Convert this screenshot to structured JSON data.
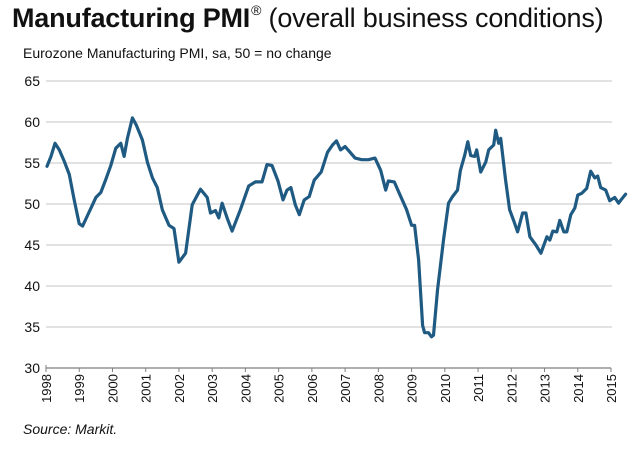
{
  "chart_data": {
    "type": "line",
    "title": "Manufacturing PMI",
    "title_mark": "®",
    "title_suffix": "(overall business conditions)",
    "subtitle": "Eurozone Manufacturing PMI, sa, 50 = no change",
    "source": "Source: Markit.",
    "xlabel": "",
    "ylabel": "",
    "xlim": [
      1998,
      2015
    ],
    "ylim": [
      30,
      65
    ],
    "yticks": [
      30,
      35,
      40,
      45,
      50,
      55,
      60,
      65
    ],
    "xticks": [
      "1998",
      "1999",
      "2000",
      "2001",
      "2002",
      "2003",
      "2004",
      "2005",
      "2006",
      "2007",
      "2008",
      "2009",
      "2010",
      "2011",
      "2012",
      "2013",
      "2014",
      "2015"
    ],
    "grid": "horizontal",
    "colors": {
      "line": "#1f5a82",
      "grid": "#d9d9d9",
      "axis": "#7f7f7f"
    },
    "series": [
      {
        "name": "Eurozone Manufacturing PMI",
        "points": [
          [
            1998.03,
            54.6
          ],
          [
            1998.15,
            55.8
          ],
          [
            1998.27,
            57.4
          ],
          [
            1998.4,
            56.6
          ],
          [
            1998.55,
            55.2
          ],
          [
            1998.7,
            53.6
          ],
          [
            1998.85,
            50.5
          ],
          [
            1999.0,
            47.6
          ],
          [
            1999.1,
            47.3
          ],
          [
            1999.25,
            48.6
          ],
          [
            1999.4,
            49.9
          ],
          [
            1999.5,
            50.8
          ],
          [
            1999.65,
            51.4
          ],
          [
            1999.8,
            53.0
          ],
          [
            1999.95,
            54.7
          ],
          [
            2000.1,
            56.8
          ],
          [
            2000.25,
            57.4
          ],
          [
            2000.35,
            55.8
          ],
          [
            2000.45,
            58.0
          ],
          [
            2000.6,
            60.5
          ],
          [
            2000.72,
            59.6
          ],
          [
            2000.9,
            57.8
          ],
          [
            2001.05,
            55.1
          ],
          [
            2001.2,
            53.2
          ],
          [
            2001.35,
            52.0
          ],
          [
            2001.5,
            49.3
          ],
          [
            2001.7,
            47.4
          ],
          [
            2001.85,
            47.0
          ],
          [
            2002.0,
            42.9
          ],
          [
            2002.2,
            44.0
          ],
          [
            2002.4,
            49.9
          ],
          [
            2002.65,
            51.8
          ],
          [
            2002.85,
            50.8
          ],
          [
            2002.95,
            48.9
          ],
          [
            2003.1,
            49.2
          ],
          [
            2003.2,
            48.3
          ],
          [
            2003.3,
            50.1
          ],
          [
            2003.45,
            48.3
          ],
          [
            2003.6,
            46.7
          ],
          [
            2003.85,
            49.3
          ],
          [
            2004.1,
            52.2
          ],
          [
            2004.3,
            52.7
          ],
          [
            2004.5,
            52.7
          ],
          [
            2004.65,
            54.8
          ],
          [
            2004.8,
            54.7
          ],
          [
            2004.98,
            52.8
          ],
          [
            2005.13,
            50.5
          ],
          [
            2005.25,
            51.7
          ],
          [
            2005.37,
            52.0
          ],
          [
            2005.5,
            49.9
          ],
          [
            2005.62,
            48.7
          ],
          [
            2005.77,
            50.5
          ],
          [
            2005.92,
            50.9
          ],
          [
            2006.07,
            52.9
          ],
          [
            2006.28,
            53.9
          ],
          [
            2006.47,
            56.3
          ],
          [
            2006.62,
            57.2
          ],
          [
            2006.74,
            57.7
          ],
          [
            2006.86,
            56.6
          ],
          [
            2007.0,
            57.0
          ],
          [
            2007.15,
            56.3
          ],
          [
            2007.3,
            55.6
          ],
          [
            2007.5,
            55.4
          ],
          [
            2007.7,
            55.4
          ],
          [
            2007.9,
            55.6
          ],
          [
            2008.07,
            54.1
          ],
          [
            2008.22,
            51.7
          ],
          [
            2008.3,
            52.8
          ],
          [
            2008.48,
            52.7
          ],
          [
            2008.63,
            51.3
          ],
          [
            2008.85,
            49.3
          ],
          [
            2009.0,
            47.4
          ],
          [
            2009.09,
            47.4
          ],
          [
            2009.21,
            43.2
          ],
          [
            2009.33,
            35.2
          ],
          [
            2009.39,
            34.3
          ],
          [
            2009.51,
            34.3
          ],
          [
            2009.6,
            33.8
          ],
          [
            2009.66,
            34.0
          ],
          [
            2009.78,
            39.5
          ],
          [
            2009.96,
            45.6
          ],
          [
            2010.11,
            50.1
          ],
          [
            2010.23,
            50.9
          ],
          [
            2010.38,
            51.7
          ],
          [
            2010.47,
            54.1
          ],
          [
            2010.6,
            56.0
          ],
          [
            2010.69,
            57.6
          ],
          [
            2010.78,
            55.9
          ],
          [
            2010.9,
            55.8
          ],
          [
            2010.96,
            56.6
          ],
          [
            2011.08,
            53.9
          ],
          [
            2011.23,
            55.1
          ],
          [
            2011.32,
            56.6
          ],
          [
            2011.47,
            57.2
          ],
          [
            2011.53,
            59.0
          ],
          [
            2011.62,
            57.4
          ],
          [
            2011.68,
            58.0
          ],
          [
            2011.83,
            52.9
          ],
          [
            2011.95,
            49.3
          ],
          [
            2012.07,
            48.0
          ],
          [
            2012.19,
            46.6
          ],
          [
            2012.34,
            48.9
          ],
          [
            2012.44,
            48.9
          ],
          [
            2012.56,
            46.0
          ],
          [
            2012.74,
            45.0
          ],
          [
            2012.89,
            44.0
          ],
          [
            2013.07,
            46.0
          ],
          [
            2013.16,
            45.6
          ],
          [
            2013.25,
            46.7
          ],
          [
            2013.37,
            46.6
          ],
          [
            2013.46,
            48.0
          ],
          [
            2013.58,
            46.6
          ],
          [
            2013.67,
            46.6
          ],
          [
            2013.79,
            48.7
          ],
          [
            2013.91,
            49.5
          ],
          [
            2014.0,
            51.1
          ],
          [
            2014.12,
            51.3
          ],
          [
            2014.27,
            51.9
          ],
          [
            2014.39,
            54.0
          ],
          [
            2014.51,
            53.2
          ],
          [
            2014.6,
            53.4
          ],
          [
            2014.69,
            52.0
          ],
          [
            2014.84,
            51.7
          ],
          [
            2014.96,
            50.4
          ],
          [
            2015.11,
            50.8
          ],
          [
            2015.23,
            50.1
          ],
          [
            2015.32,
            50.6
          ],
          [
            2015.44,
            51.2
          ]
        ]
      }
    ]
  }
}
